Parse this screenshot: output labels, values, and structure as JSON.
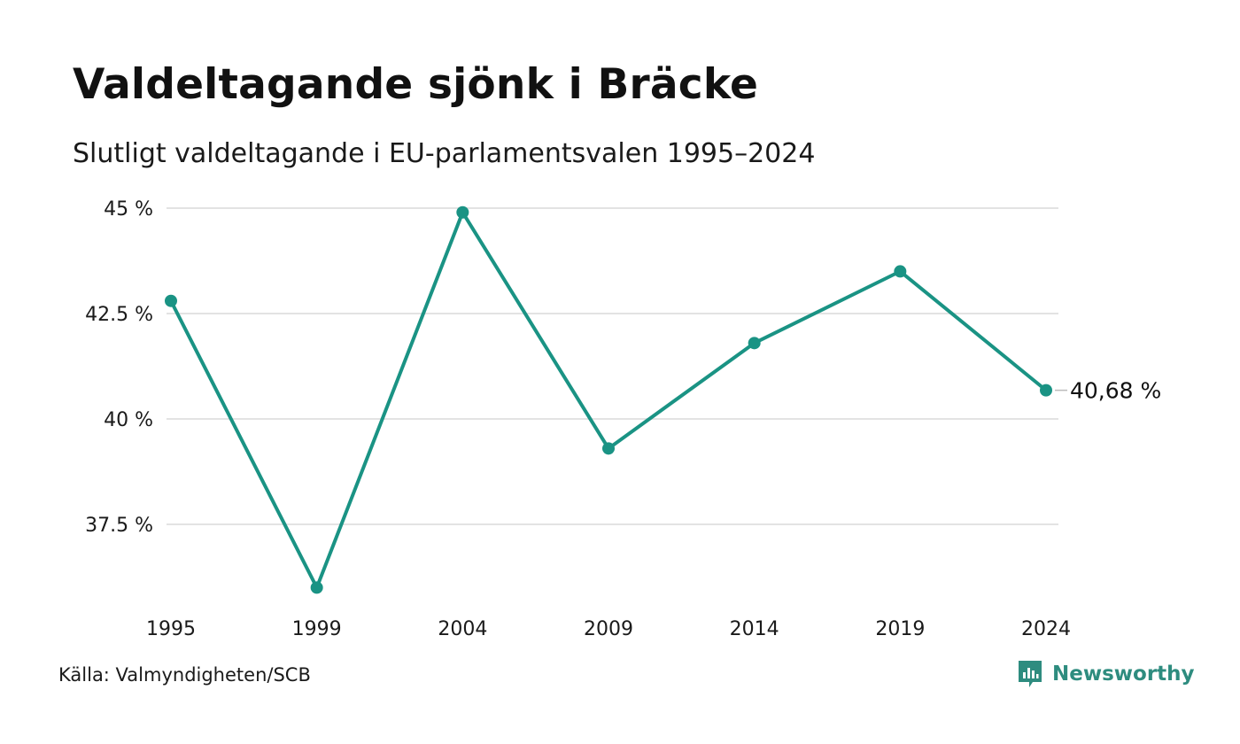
{
  "header": {
    "title": "Valdeltagande sjönk i Bräcke",
    "subtitle": "Slutligt valdeltagande i EU-parlamentsvalen 1995–2024"
  },
  "footer": {
    "source": "Källa: Valmyndigheten/SCB",
    "brand": "Newsworthy",
    "brand_icon": "newsworthy-logo-icon",
    "brand_color": "#2e8c7f"
  },
  "chart_data": {
    "type": "line",
    "title": "Valdeltagande sjönk i Bräcke",
    "subtitle": "Slutligt valdeltagande i EU-parlamentsvalen 1995–2024",
    "xlabel": "",
    "ylabel": "",
    "categories": [
      "1995",
      "1999",
      "2004",
      "2009",
      "2014",
      "2019",
      "2024"
    ],
    "series": [
      {
        "values": [
          42.8,
          36.0,
          44.9,
          39.3,
          41.8,
          43.5,
          40.68
        ],
        "color": "#1a9384"
      }
    ],
    "yticks": [
      {
        "value": 37.5,
        "label": "37.5 %"
      },
      {
        "value": 40,
        "label": "40 %"
      },
      {
        "value": 42.5,
        "label": "42.5 %"
      },
      {
        "value": 45,
        "label": "45 %"
      }
    ],
    "ylim": [
      35.5,
      45.5
    ],
    "grid": true,
    "end_label": "40,68 %",
    "line_color": "#1a9384",
    "grid_color": "#e3e3e3"
  }
}
